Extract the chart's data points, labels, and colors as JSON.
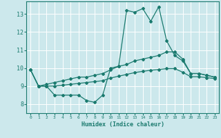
{
  "xlabel": "Humidex (Indice chaleur)",
  "ylabel": "",
  "bg_color": "#cce8ec",
  "grid_color": "#ffffff",
  "line_color": "#1a7a6e",
  "xlim": [
    -0.5,
    23.5
  ],
  "ylim": [
    7.5,
    13.7
  ],
  "xticks": [
    0,
    1,
    2,
    3,
    4,
    5,
    6,
    7,
    8,
    9,
    10,
    11,
    12,
    13,
    14,
    15,
    16,
    17,
    18,
    19,
    20,
    21,
    22,
    23
  ],
  "yticks": [
    8,
    9,
    10,
    11,
    12,
    13
  ],
  "series": {
    "main": [
      9.9,
      9.0,
      9.0,
      8.5,
      8.5,
      8.5,
      8.5,
      8.2,
      8.1,
      8.5,
      10.0,
      10.1,
      13.2,
      13.1,
      13.3,
      12.6,
      13.4,
      11.5,
      10.7,
      10.4,
      9.7,
      9.7,
      9.6,
      9.5
    ],
    "upper": [
      9.9,
      9.0,
      9.1,
      9.2,
      9.3,
      9.4,
      9.5,
      9.5,
      9.6,
      9.7,
      9.9,
      10.1,
      10.2,
      10.4,
      10.5,
      10.6,
      10.7,
      10.9,
      10.9,
      10.5,
      9.7,
      9.7,
      9.6,
      9.5
    ],
    "lower": [
      9.9,
      9.0,
      9.0,
      9.0,
      9.05,
      9.1,
      9.15,
      9.2,
      9.25,
      9.3,
      9.45,
      9.55,
      9.65,
      9.75,
      9.82,
      9.88,
      9.92,
      9.97,
      9.97,
      9.77,
      9.52,
      9.52,
      9.47,
      9.42
    ]
  }
}
